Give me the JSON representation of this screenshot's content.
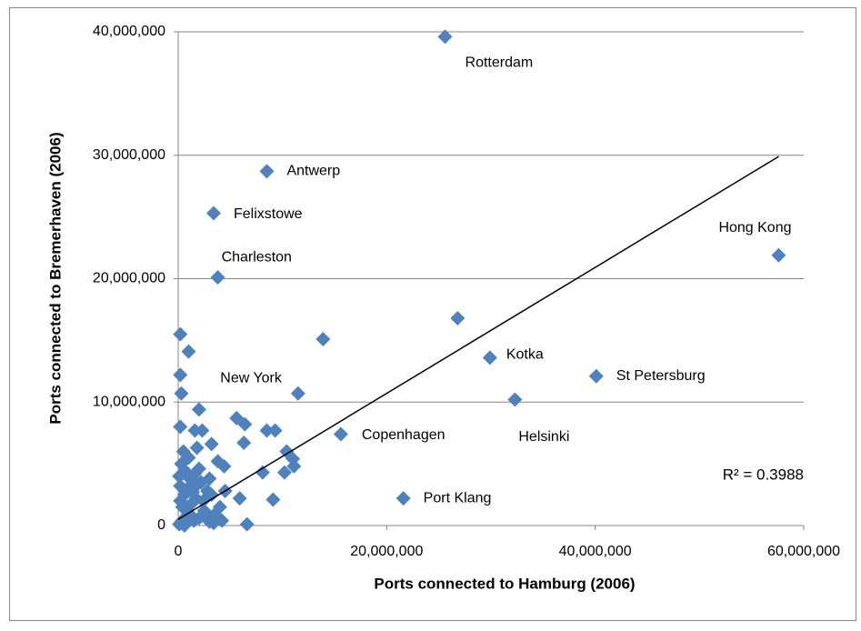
{
  "chart_data": {
    "type": "scatter",
    "x_label": "Ports connected to Hamburg (2006)",
    "y_label": "Ports connected to Bremerhaven (2006)",
    "xlim": [
      0,
      60000000.0
    ],
    "ylim": [
      0,
      40000000.0
    ],
    "xticks": [
      0,
      {
        "value": 20000000,
        "label": "20,000,000"
      },
      {
        "value": 40000000,
        "label": "40,000,000"
      },
      {
        "value": 60000000,
        "label": "60,000,000"
      }
    ],
    "yticks": [
      {
        "value": 0,
        "label": "0"
      },
      {
        "value": 10000000,
        "label": "10,000,000"
      },
      {
        "value": 20000000,
        "label": "20,000,000"
      },
      {
        "value": 30000000,
        "label": "30,000,000"
      },
      {
        "value": 40000000,
        "label": "40,000,000"
      }
    ],
    "grid": true,
    "color": "#4f81bd",
    "x": [
      25600000.0,
      8500000.0,
      3400000.0,
      3800000.0,
      57600000.0,
      200000.0,
      29900000.0,
      40100000.0,
      32300000.0,
      15600000.0,
      21600000.0,
      26800000.0,
      13900000.0,
      11500000.0,
      200000.0,
      1000000.0,
      300000.0,
      2000000.0,
      200000.0,
      5600000.0,
      6400000.0,
      6300000.0,
      3200000.0,
      8500000.0,
      9300000.0,
      1600000.0,
      2300000.0,
      1800000.0,
      3800000.0,
      4400000.0,
      10400000.0,
      11000000.0,
      11100000.0,
      10200000.0,
      8100000.0,
      9100000.0,
      5900000.0,
      6600000.0,
      100000.0,
      300000.0,
      500000.0,
      800000.0,
      1000000.0,
      1200000.0,
      1500000.0,
      200000.0,
      400000.0,
      600000.0,
      900000.0,
      1300000.0,
      1700000.0,
      2000000.0,
      2500000.0,
      3000000.0,
      3500000.0,
      4000000.0,
      2200000.0,
      2800000.0,
      100000.0,
      300000.0,
      700000.0,
      1100000.0,
      1600000.0,
      2400000.0,
      3200000.0,
      4200000.0,
      500000.0,
      1000000.0,
      1800000.0,
      2600000.0,
      3400000.0,
      200000.0,
      800000.0,
      1400000.0,
      2000000.0,
      3000000.0,
      4500000.0,
      600000.0
    ],
    "y": [
      39600000.0,
      28700000.0,
      25300000.0,
      20100000.0,
      21900000.0,
      12200000.0,
      13600000.0,
      12100000.0,
      10200000.0,
      7400000.0,
      2200000.0,
      16800000.0,
      15100000.0,
      10700000.0,
      15500000.0,
      14100000.0,
      10700000.0,
      9400000.0,
      8000000.0,
      8700000.0,
      8200000.0,
      6700000.0,
      6600000.0,
      7700000.0,
      7700000.0,
      7700000.0,
      7700000.0,
      6300000.0,
      5200000.0,
      4800000.0,
      6000000.0,
      5400000.0,
      4800000.0,
      4300000.0,
      4300000.0,
      2100000.0,
      2200000.0,
      100000.0,
      100000.0,
      300000.0,
      500000.0,
      200000.0,
      1000000.0,
      800000.0,
      400000.0,
      2000000.0,
      1500000.0,
      2500000.0,
      3000000.0,
      1800000.0,
      2200000.0,
      600000.0,
      1200000.0,
      300000.0,
      900000.0,
      1500000.0,
      3500000.0,
      2800000.0,
      4000000.0,
      5000000.0,
      4400000.0,
      3800000.0,
      4200000.0,
      2000000.0,
      2500000.0,
      400000.0,
      6000000.0,
      5500000.0,
      3300000.0,
      1000000.0,
      200000.0,
      3200000.0,
      1300000.0,
      2700000.0,
      4600000.0,
      3800000.0,
      2800000.0,
      0
    ],
    "point_labels": [
      "Rotterdam",
      "Antwerp",
      "Felixstowe",
      "Charleston",
      "Hong Kong",
      "New York",
      "Kotka",
      "St Petersburg",
      "Helsinki",
      "Copenhagen",
      "Port Klang",
      null,
      null,
      null,
      null,
      null,
      null,
      null,
      null,
      null,
      null,
      null,
      null,
      null,
      null,
      null,
      null,
      null,
      null,
      null,
      null,
      null,
      null,
      null,
      null,
      null,
      null,
      null,
      null,
      null,
      null,
      null,
      null,
      null,
      null,
      null,
      null,
      null,
      null,
      null,
      null,
      null,
      null,
      null,
      null,
      null,
      null,
      null,
      null,
      null,
      null,
      null,
      null,
      null,
      null,
      null,
      null,
      null,
      null,
      null,
      null,
      null,
      null,
      null,
      null,
      null,
      null,
      null
    ],
    "trendline": {
      "x": [
        0,
        57600000.0
      ],
      "y": [
        500000.0,
        29900000.0
      ],
      "color": "#000000",
      "label": "R² = 0.3988"
    }
  }
}
